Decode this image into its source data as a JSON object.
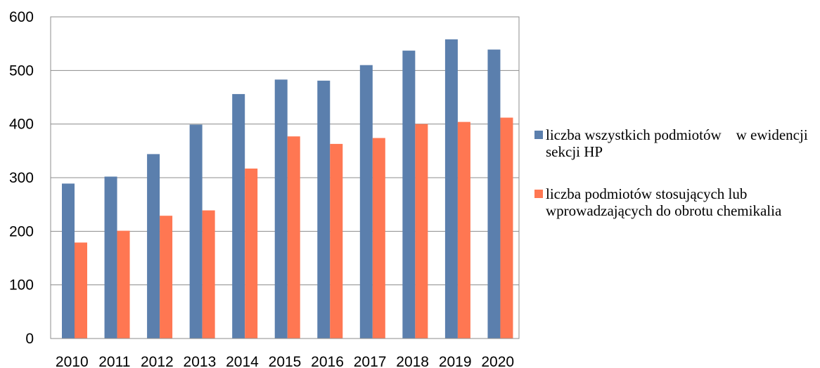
{
  "chart_data": {
    "type": "bar",
    "categories": [
      "2010",
      "2011",
      "2012",
      "2013",
      "2014",
      "2015",
      "2016",
      "2017",
      "2018",
      "2019",
      "2020"
    ],
    "series": [
      {
        "name": "liczba wszystkich podmiotów    w ewidencji sekcji HP",
        "color": "#5b7fad",
        "values": [
          289,
          302,
          344,
          399,
          456,
          483,
          481,
          510,
          537,
          558,
          539
        ]
      },
      {
        "name": "liczba podmiotów stosujących lub wprowadzających do obrotu chemikalia",
        "color": "#ff7752",
        "values": [
          179,
          201,
          229,
          239,
          317,
          377,
          363,
          374,
          400,
          404,
          412
        ]
      }
    ],
    "yticks": [
      "0",
      "100",
      "200",
      "300",
      "400",
      "500",
      "600"
    ],
    "ylim": [
      0,
      600
    ],
    "grid": true,
    "legend_position": "right"
  }
}
